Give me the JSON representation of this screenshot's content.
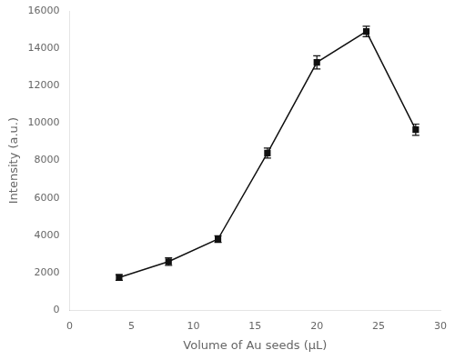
{
  "chart_data": {
    "type": "line",
    "x": [
      4,
      8,
      12,
      16,
      20,
      24,
      28
    ],
    "values": [
      1750,
      2600,
      3800,
      8400,
      13250,
      14900,
      9650
    ],
    "yerr": [
      150,
      200,
      180,
      270,
      350,
      280,
      300
    ],
    "xlabel": "Volume of Au seeds (μL)",
    "ylabel": "Intensity (a.u.)",
    "xlim": [
      0,
      30
    ],
    "ylim": [
      0,
      16000
    ],
    "xticks": [
      0,
      5,
      10,
      15,
      20,
      25,
      30
    ],
    "yticks": [
      0,
      2000,
      4000,
      6000,
      8000,
      10000,
      12000,
      14000,
      16000
    ],
    "color": "#111111",
    "marker": "square",
    "line_style": "solid",
    "grid": false
  }
}
